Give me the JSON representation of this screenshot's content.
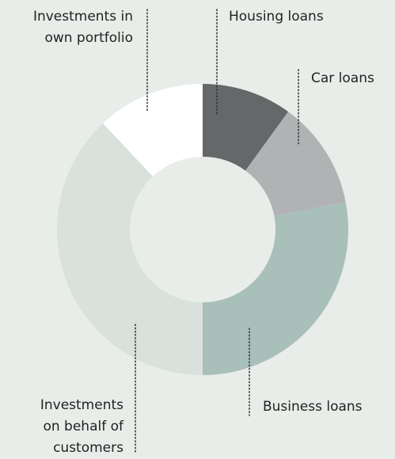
{
  "chart_data": {
    "type": "donut",
    "categories": [
      "Housing loans",
      "Car loans",
      "Business loans",
      "Investments on behalf of customers",
      "Investments in own portfolio"
    ],
    "values": [
      10,
      12,
      28,
      38,
      12
    ],
    "colors": [
      "#666768",
      "#b1b2b4",
      "#a8bfba",
      "#d8e1db",
      "#ffffff"
    ]
  }
}
